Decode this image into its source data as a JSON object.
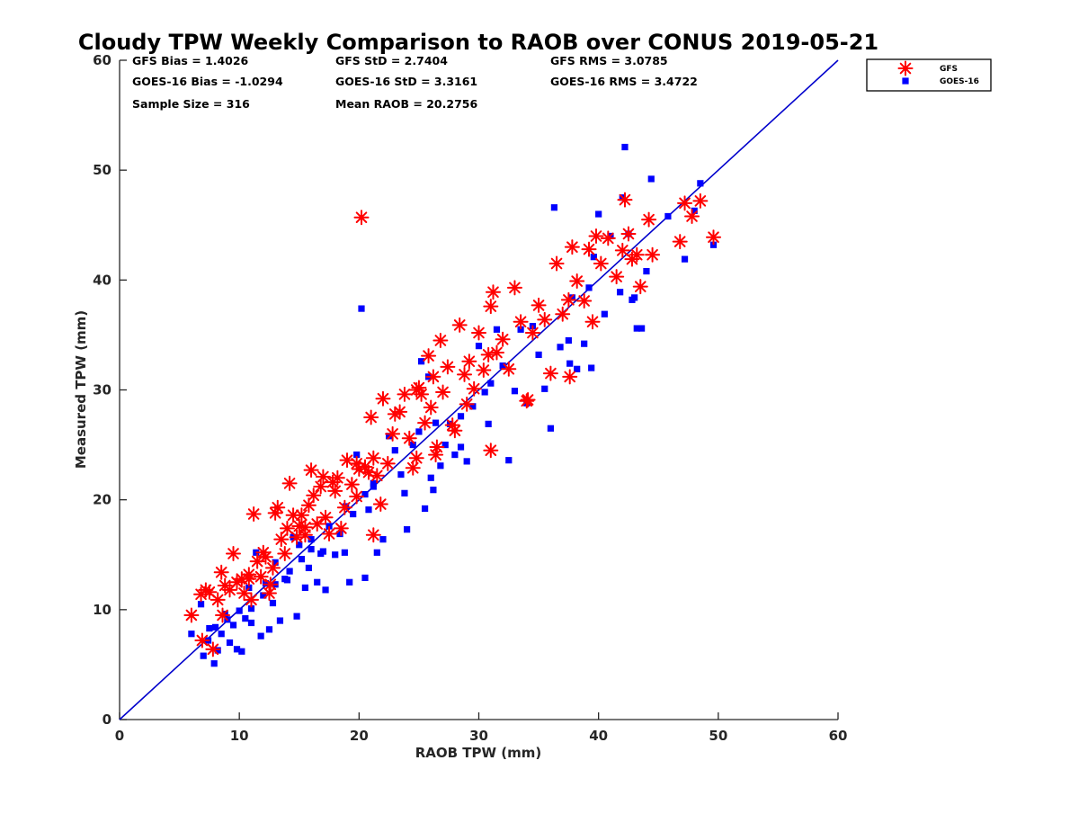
{
  "chart_data": {
    "type": "scatter",
    "title": "Cloudy TPW Weekly Comparison to RAOB over CONUS 2019-05-21",
    "xlabel": "RAOB TPW (mm)",
    "ylabel": "Measured TPW (mm)",
    "xlim": [
      0,
      60
    ],
    "ylim": [
      0,
      60
    ],
    "xticks": [
      "0",
      "10",
      "20",
      "30",
      "40",
      "50",
      "60"
    ],
    "yticks": [
      "0",
      "10",
      "20",
      "30",
      "40",
      "50",
      "60"
    ],
    "grid": false,
    "legend_position": "top-right, outside plot",
    "reference_line": {
      "x": [
        0,
        60
      ],
      "y": [
        0,
        60
      ],
      "color": "#0000cc"
    },
    "stats": {
      "gfs_bias": "GFS Bias = 1.4026",
      "goes_bias": "GOES-16 Bias = -1.0294",
      "sample_size": "Sample Size = 316",
      "gfs_std": "GFS StD = 2.7404",
      "goes_std": "GOES-16 StD = 3.3161",
      "mean_raob": "Mean RAOB = 20.2756",
      "gfs_rms": "GFS RMS = 3.0785",
      "goes_rms": "GOES-16 RMS = 3.4722"
    },
    "series": [
      {
        "name": "GFS",
        "marker": "asterisk",
        "color": "#ff0000",
        "points": [
          [
            6.0,
            9.5
          ],
          [
            6.8,
            11.4
          ],
          [
            7.2,
            11.8
          ],
          [
            7.5,
            11.6
          ],
          [
            6.9,
            7.2
          ],
          [
            7.8,
            6.4
          ],
          [
            8.2,
            10.9
          ],
          [
            8.5,
            13.4
          ],
          [
            8.8,
            12.2
          ],
          [
            9.2,
            11.8
          ],
          [
            9.5,
            15.1
          ],
          [
            9.8,
            12.5
          ],
          [
            10.2,
            12.8
          ],
          [
            10.4,
            11.5
          ],
          [
            10.8,
            13.2
          ],
          [
            11.0,
            10.9
          ],
          [
            11.2,
            18.7
          ],
          [
            11.5,
            14.4
          ],
          [
            11.8,
            13.0
          ],
          [
            12.0,
            15.2
          ],
          [
            12.2,
            14.8
          ],
          [
            12.5,
            11.5
          ],
          [
            12.8,
            13.8
          ],
          [
            13.0,
            18.8
          ],
          [
            13.2,
            19.3
          ],
          [
            13.5,
            16.4
          ],
          [
            13.8,
            15.1
          ],
          [
            14.0,
            17.4
          ],
          [
            14.2,
            21.5
          ],
          [
            14.5,
            18.6
          ],
          [
            14.8,
            16.6
          ],
          [
            15.0,
            17.6
          ],
          [
            15.2,
            18.6
          ],
          [
            15.5,
            16.8
          ],
          [
            15.8,
            19.5
          ],
          [
            16.0,
            22.7
          ],
          [
            16.2,
            20.4
          ],
          [
            16.5,
            17.8
          ],
          [
            16.8,
            21.2
          ],
          [
            17.0,
            22.1
          ],
          [
            17.2,
            18.4
          ],
          [
            17.5,
            16.9
          ],
          [
            17.8,
            21.6
          ],
          [
            18.0,
            20.8
          ],
          [
            18.2,
            22.0
          ],
          [
            18.5,
            17.4
          ],
          [
            18.8,
            19.3
          ],
          [
            19.0,
            23.6
          ],
          [
            19.4,
            21.4
          ],
          [
            19.8,
            23.3
          ],
          [
            20.0,
            22.8
          ],
          [
            20.2,
            45.7
          ],
          [
            20.5,
            23.0
          ],
          [
            20.8,
            22.5
          ],
          [
            21.0,
            27.5
          ],
          [
            21.2,
            23.8
          ],
          [
            21.5,
            22.2
          ],
          [
            21.8,
            19.6
          ],
          [
            22.0,
            29.2
          ],
          [
            22.4,
            23.3
          ],
          [
            22.8,
            26.0
          ],
          [
            23.0,
            27.8
          ],
          [
            23.4,
            28.0
          ],
          [
            23.8,
            29.6
          ],
          [
            24.2,
            25.6
          ],
          [
            24.5,
            22.9
          ],
          [
            24.8,
            30.0
          ],
          [
            25.0,
            30.2
          ],
          [
            25.2,
            29.6
          ],
          [
            25.5,
            27.0
          ],
          [
            25.8,
            33.1
          ],
          [
            26.0,
            28.4
          ],
          [
            26.2,
            31.2
          ],
          [
            26.5,
            24.8
          ],
          [
            26.8,
            34.5
          ],
          [
            27.0,
            29.8
          ],
          [
            27.4,
            32.1
          ],
          [
            27.8,
            26.8
          ],
          [
            28.0,
            26.3
          ],
          [
            28.4,
            35.9
          ],
          [
            28.8,
            31.4
          ],
          [
            29.2,
            32.6
          ],
          [
            29.6,
            30.1
          ],
          [
            30.0,
            35.2
          ],
          [
            30.4,
            31.8
          ],
          [
            30.8,
            33.2
          ],
          [
            31.0,
            37.6
          ],
          [
            31.2,
            38.9
          ],
          [
            31.5,
            33.4
          ],
          [
            32.0,
            34.6
          ],
          [
            32.5,
            31.9
          ],
          [
            33.0,
            39.3
          ],
          [
            33.5,
            36.2
          ],
          [
            34.0,
            29.0
          ],
          [
            34.5,
            35.2
          ],
          [
            35.0,
            37.7
          ],
          [
            35.5,
            36.4
          ],
          [
            36.0,
            31.5
          ],
          [
            36.5,
            41.5
          ],
          [
            37.0,
            36.9
          ],
          [
            37.5,
            38.2
          ],
          [
            37.8,
            43.0
          ],
          [
            38.2,
            39.9
          ],
          [
            38.8,
            38.1
          ],
          [
            39.2,
            42.8
          ],
          [
            39.5,
            36.2
          ],
          [
            39.8,
            44.0
          ],
          [
            40.2,
            41.5
          ],
          [
            40.8,
            43.8
          ],
          [
            41.5,
            40.3
          ],
          [
            42.0,
            42.7
          ],
          [
            42.2,
            47.3
          ],
          [
            42.5,
            44.2
          ],
          [
            42.8,
            41.9
          ],
          [
            43.2,
            42.3
          ],
          [
            43.5,
            39.4
          ],
          [
            44.2,
            45.5
          ],
          [
            44.5,
            42.3
          ],
          [
            46.8,
            43.5
          ],
          [
            47.2,
            47.0
          ],
          [
            47.8,
            45.8
          ],
          [
            48.5,
            47.2
          ],
          [
            49.6,
            43.9
          ],
          [
            37.6,
            31.2
          ],
          [
            34.1,
            29.1
          ],
          [
            31.0,
            24.5
          ],
          [
            21.2,
            16.8
          ],
          [
            24.8,
            23.8
          ],
          [
            26.4,
            24.1
          ],
          [
            29.0,
            28.7
          ],
          [
            19.8,
            20.3
          ],
          [
            15.5,
            17.5
          ],
          [
            12.6,
            12.3
          ],
          [
            10.8,
            12.8
          ],
          [
            8.6,
            9.5
          ]
        ]
      },
      {
        "name": "GOES-16",
        "marker": "square",
        "color": "#0000ff",
        "points": [
          [
            6.0,
            7.8
          ],
          [
            6.8,
            10.5
          ],
          [
            7.0,
            5.8
          ],
          [
            7.5,
            8.3
          ],
          [
            7.9,
            5.1
          ],
          [
            8.2,
            6.3
          ],
          [
            8.5,
            7.8
          ],
          [
            8.8,
            9.6
          ],
          [
            9.2,
            7.0
          ],
          [
            9.5,
            8.6
          ],
          [
            9.8,
            6.4
          ],
          [
            10.2,
            6.2
          ],
          [
            10.5,
            9.2
          ],
          [
            10.8,
            12.0
          ],
          [
            11.0,
            8.8
          ],
          [
            11.4,
            15.2
          ],
          [
            11.8,
            7.6
          ],
          [
            12.2,
            12.4
          ],
          [
            12.5,
            8.2
          ],
          [
            12.8,
            10.6
          ],
          [
            13.0,
            14.3
          ],
          [
            13.4,
            9.0
          ],
          [
            13.8,
            12.8
          ],
          [
            14.2,
            13.5
          ],
          [
            14.5,
            16.6
          ],
          [
            14.8,
            9.4
          ],
          [
            15.2,
            14.6
          ],
          [
            15.5,
            12.0
          ],
          [
            15.8,
            13.8
          ],
          [
            16.0,
            16.4
          ],
          [
            16.5,
            12.5
          ],
          [
            16.8,
            15.1
          ],
          [
            17.2,
            11.8
          ],
          [
            17.5,
            17.6
          ],
          [
            18.0,
            15.0
          ],
          [
            18.4,
            16.9
          ],
          [
            18.8,
            15.2
          ],
          [
            19.2,
            12.5
          ],
          [
            19.5,
            18.7
          ],
          [
            19.8,
            24.1
          ],
          [
            20.2,
            37.4
          ],
          [
            20.5,
            12.9
          ],
          [
            20.8,
            19.1
          ],
          [
            21.2,
            21.5
          ],
          [
            21.5,
            15.2
          ],
          [
            22.0,
            16.4
          ],
          [
            22.5,
            25.8
          ],
          [
            23.0,
            24.5
          ],
          [
            23.5,
            22.3
          ],
          [
            24.0,
            17.3
          ],
          [
            24.5,
            25.0
          ],
          [
            25.0,
            26.2
          ],
          [
            25.2,
            32.6
          ],
          [
            25.5,
            19.2
          ],
          [
            25.8,
            31.2
          ],
          [
            26.0,
            22.0
          ],
          [
            26.4,
            27.0
          ],
          [
            26.8,
            23.1
          ],
          [
            27.2,
            25.0
          ],
          [
            27.6,
            26.9
          ],
          [
            28.0,
            24.1
          ],
          [
            28.5,
            27.6
          ],
          [
            29.0,
            23.5
          ],
          [
            29.5,
            28.5
          ],
          [
            30.0,
            34.0
          ],
          [
            30.5,
            29.8
          ],
          [
            31.0,
            30.6
          ],
          [
            31.5,
            35.5
          ],
          [
            32.0,
            32.2
          ],
          [
            32.5,
            23.6
          ],
          [
            33.0,
            29.9
          ],
          [
            33.5,
            35.5
          ],
          [
            34.0,
            28.8
          ],
          [
            34.5,
            35.8
          ],
          [
            35.0,
            33.2
          ],
          [
            35.5,
            30.1
          ],
          [
            36.0,
            26.5
          ],
          [
            36.3,
            46.6
          ],
          [
            36.8,
            33.9
          ],
          [
            37.5,
            34.5
          ],
          [
            37.8,
            38.4
          ],
          [
            38.2,
            31.9
          ],
          [
            38.8,
            34.2
          ],
          [
            39.2,
            39.3
          ],
          [
            39.6,
            42.1
          ],
          [
            40.0,
            46.0
          ],
          [
            40.5,
            36.9
          ],
          [
            41.0,
            44.0
          ],
          [
            41.8,
            38.9
          ],
          [
            42.0,
            47.5
          ],
          [
            42.2,
            52.1
          ],
          [
            42.5,
            44.2
          ],
          [
            42.8,
            38.2
          ],
          [
            43.0,
            38.4
          ],
          [
            43.2,
            35.6
          ],
          [
            43.6,
            35.6
          ],
          [
            44.0,
            40.8
          ],
          [
            44.4,
            49.2
          ],
          [
            45.8,
            45.8
          ],
          [
            47.2,
            41.9
          ],
          [
            48.0,
            46.3
          ],
          [
            48.5,
            48.8
          ],
          [
            49.6,
            43.2
          ],
          [
            39.4,
            32.0
          ],
          [
            37.6,
            32.4
          ],
          [
            30.8,
            26.9
          ],
          [
            28.5,
            24.8
          ],
          [
            26.2,
            20.9
          ],
          [
            23.8,
            20.6
          ],
          [
            21.2,
            21.2
          ],
          [
            20.5,
            20.5
          ],
          [
            18.9,
            19.4
          ],
          [
            17.0,
            15.3
          ],
          [
            16.0,
            15.5
          ],
          [
            15.0,
            15.9
          ],
          [
            14.0,
            12.7
          ],
          [
            13.0,
            12.3
          ],
          [
            12.0,
            11.3
          ],
          [
            11.0,
            10.1
          ],
          [
            10.0,
            9.9
          ],
          [
            9.0,
            9.1
          ],
          [
            8.0,
            8.4
          ],
          [
            7.4,
            7.2
          ]
        ]
      }
    ]
  }
}
